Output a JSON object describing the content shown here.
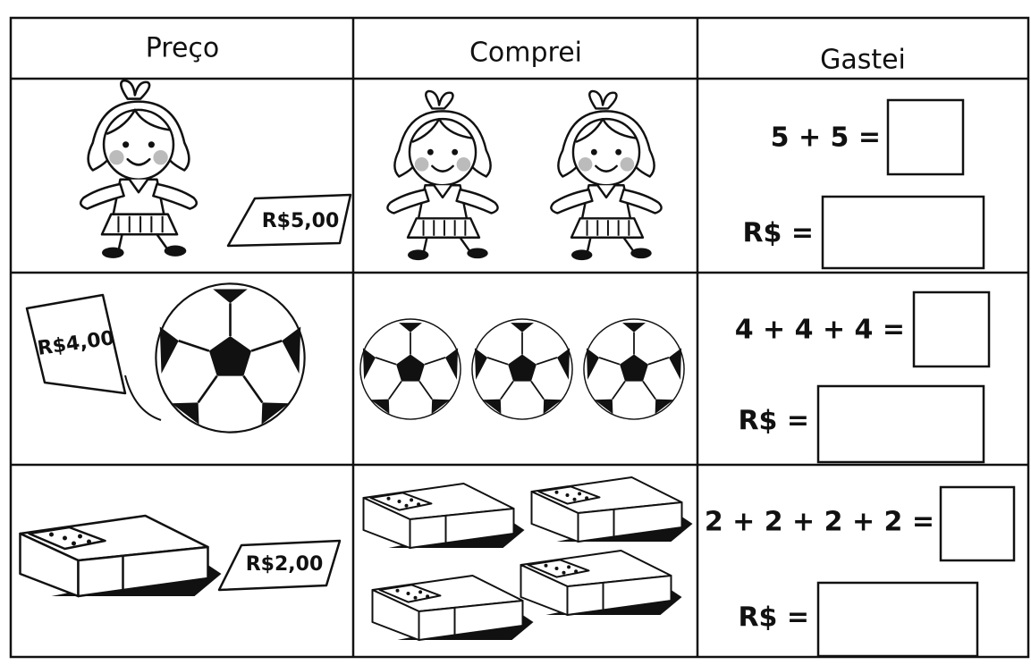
{
  "table": {
    "headers": [
      "Preço",
      "Comprei",
      "Gastei"
    ],
    "rows": [
      {
        "price_tag": "R$5,00",
        "equation": "5 + 5 =",
        "currency": "R$ ="
      },
      {
        "price_tag": "R$4,00",
        "equation": "4 + 4 + 4 =",
        "currency": "R$ ="
      },
      {
        "price_tag": "R$2,00",
        "equation": "2 + 2 + 2 + 2 =",
        "currency": "R$ ="
      }
    ]
  }
}
